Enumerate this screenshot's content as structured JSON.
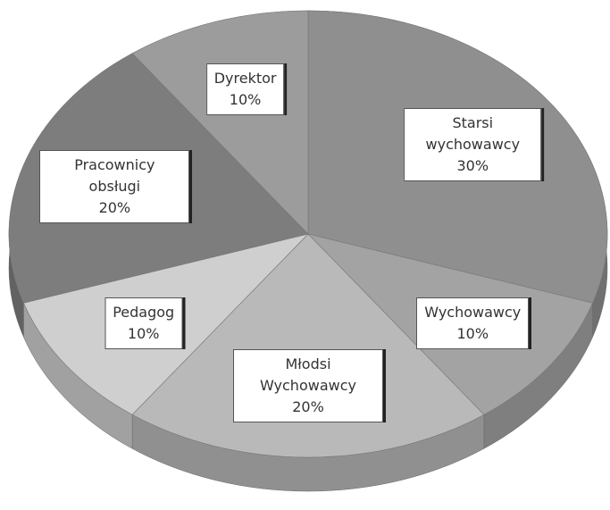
{
  "chart_data": {
    "type": "pie",
    "categories": [
      "Starsi wychowawcy",
      "Wychowawcy",
      "Młodsi Wychowawcy",
      "Pedagog",
      "Pracownicy obsługi",
      "Dyrektor"
    ],
    "values": [
      30,
      10,
      20,
      10,
      20,
      10
    ],
    "value_labels": [
      "30%",
      "10%",
      "20%",
      "10%",
      "20%",
      "10%"
    ],
    "colors": [
      "#8f8f8f",
      "#a3a3a3",
      "#b9b9b9",
      "#cfcfcf",
      "#7d7d7d",
      "#9c9c9c"
    ]
  }
}
